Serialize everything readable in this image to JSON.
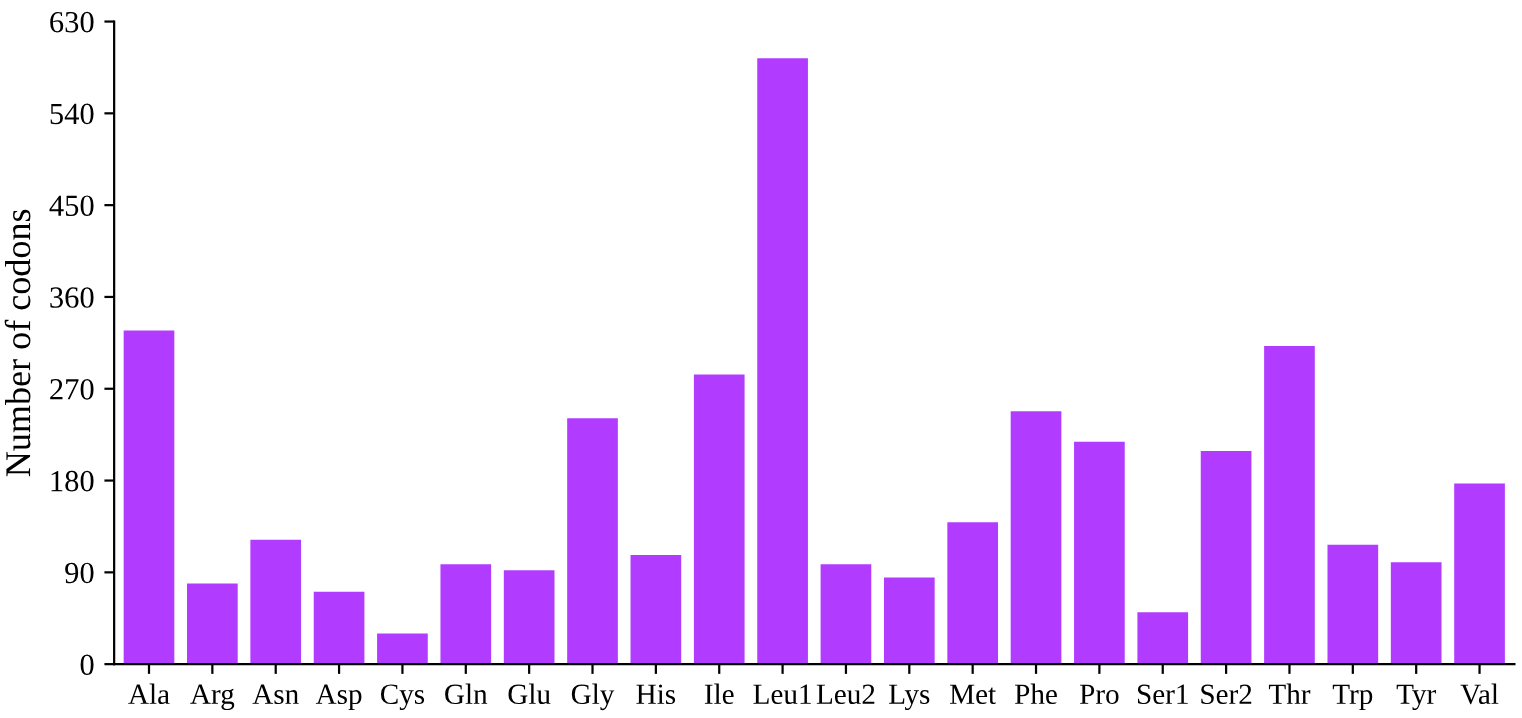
{
  "chart_data": {
    "type": "bar",
    "ylabel": "Number of codons",
    "categories": [
      "Ala",
      "Arg",
      "Asn",
      "Asp",
      "Cys",
      "Gln",
      "Glu",
      "Gly",
      "His",
      "Ile",
      "Leu1",
      "Leu2",
      "Lys",
      "Met",
      "Phe",
      "Pro",
      "Ser1",
      "Ser2",
      "Thr",
      "Trp",
      "Tyr",
      "Val"
    ],
    "values": [
      327,
      79,
      122,
      71,
      30,
      98,
      92,
      241,
      107,
      284,
      594,
      98,
      85,
      139,
      248,
      218,
      51,
      209,
      312,
      117,
      100,
      177
    ],
    "color": "#b13cff",
    "ylim": [
      0,
      630
    ],
    "yticks": [
      0,
      90,
      180,
      270,
      360,
      450,
      540,
      630
    ],
    "grid": false
  }
}
